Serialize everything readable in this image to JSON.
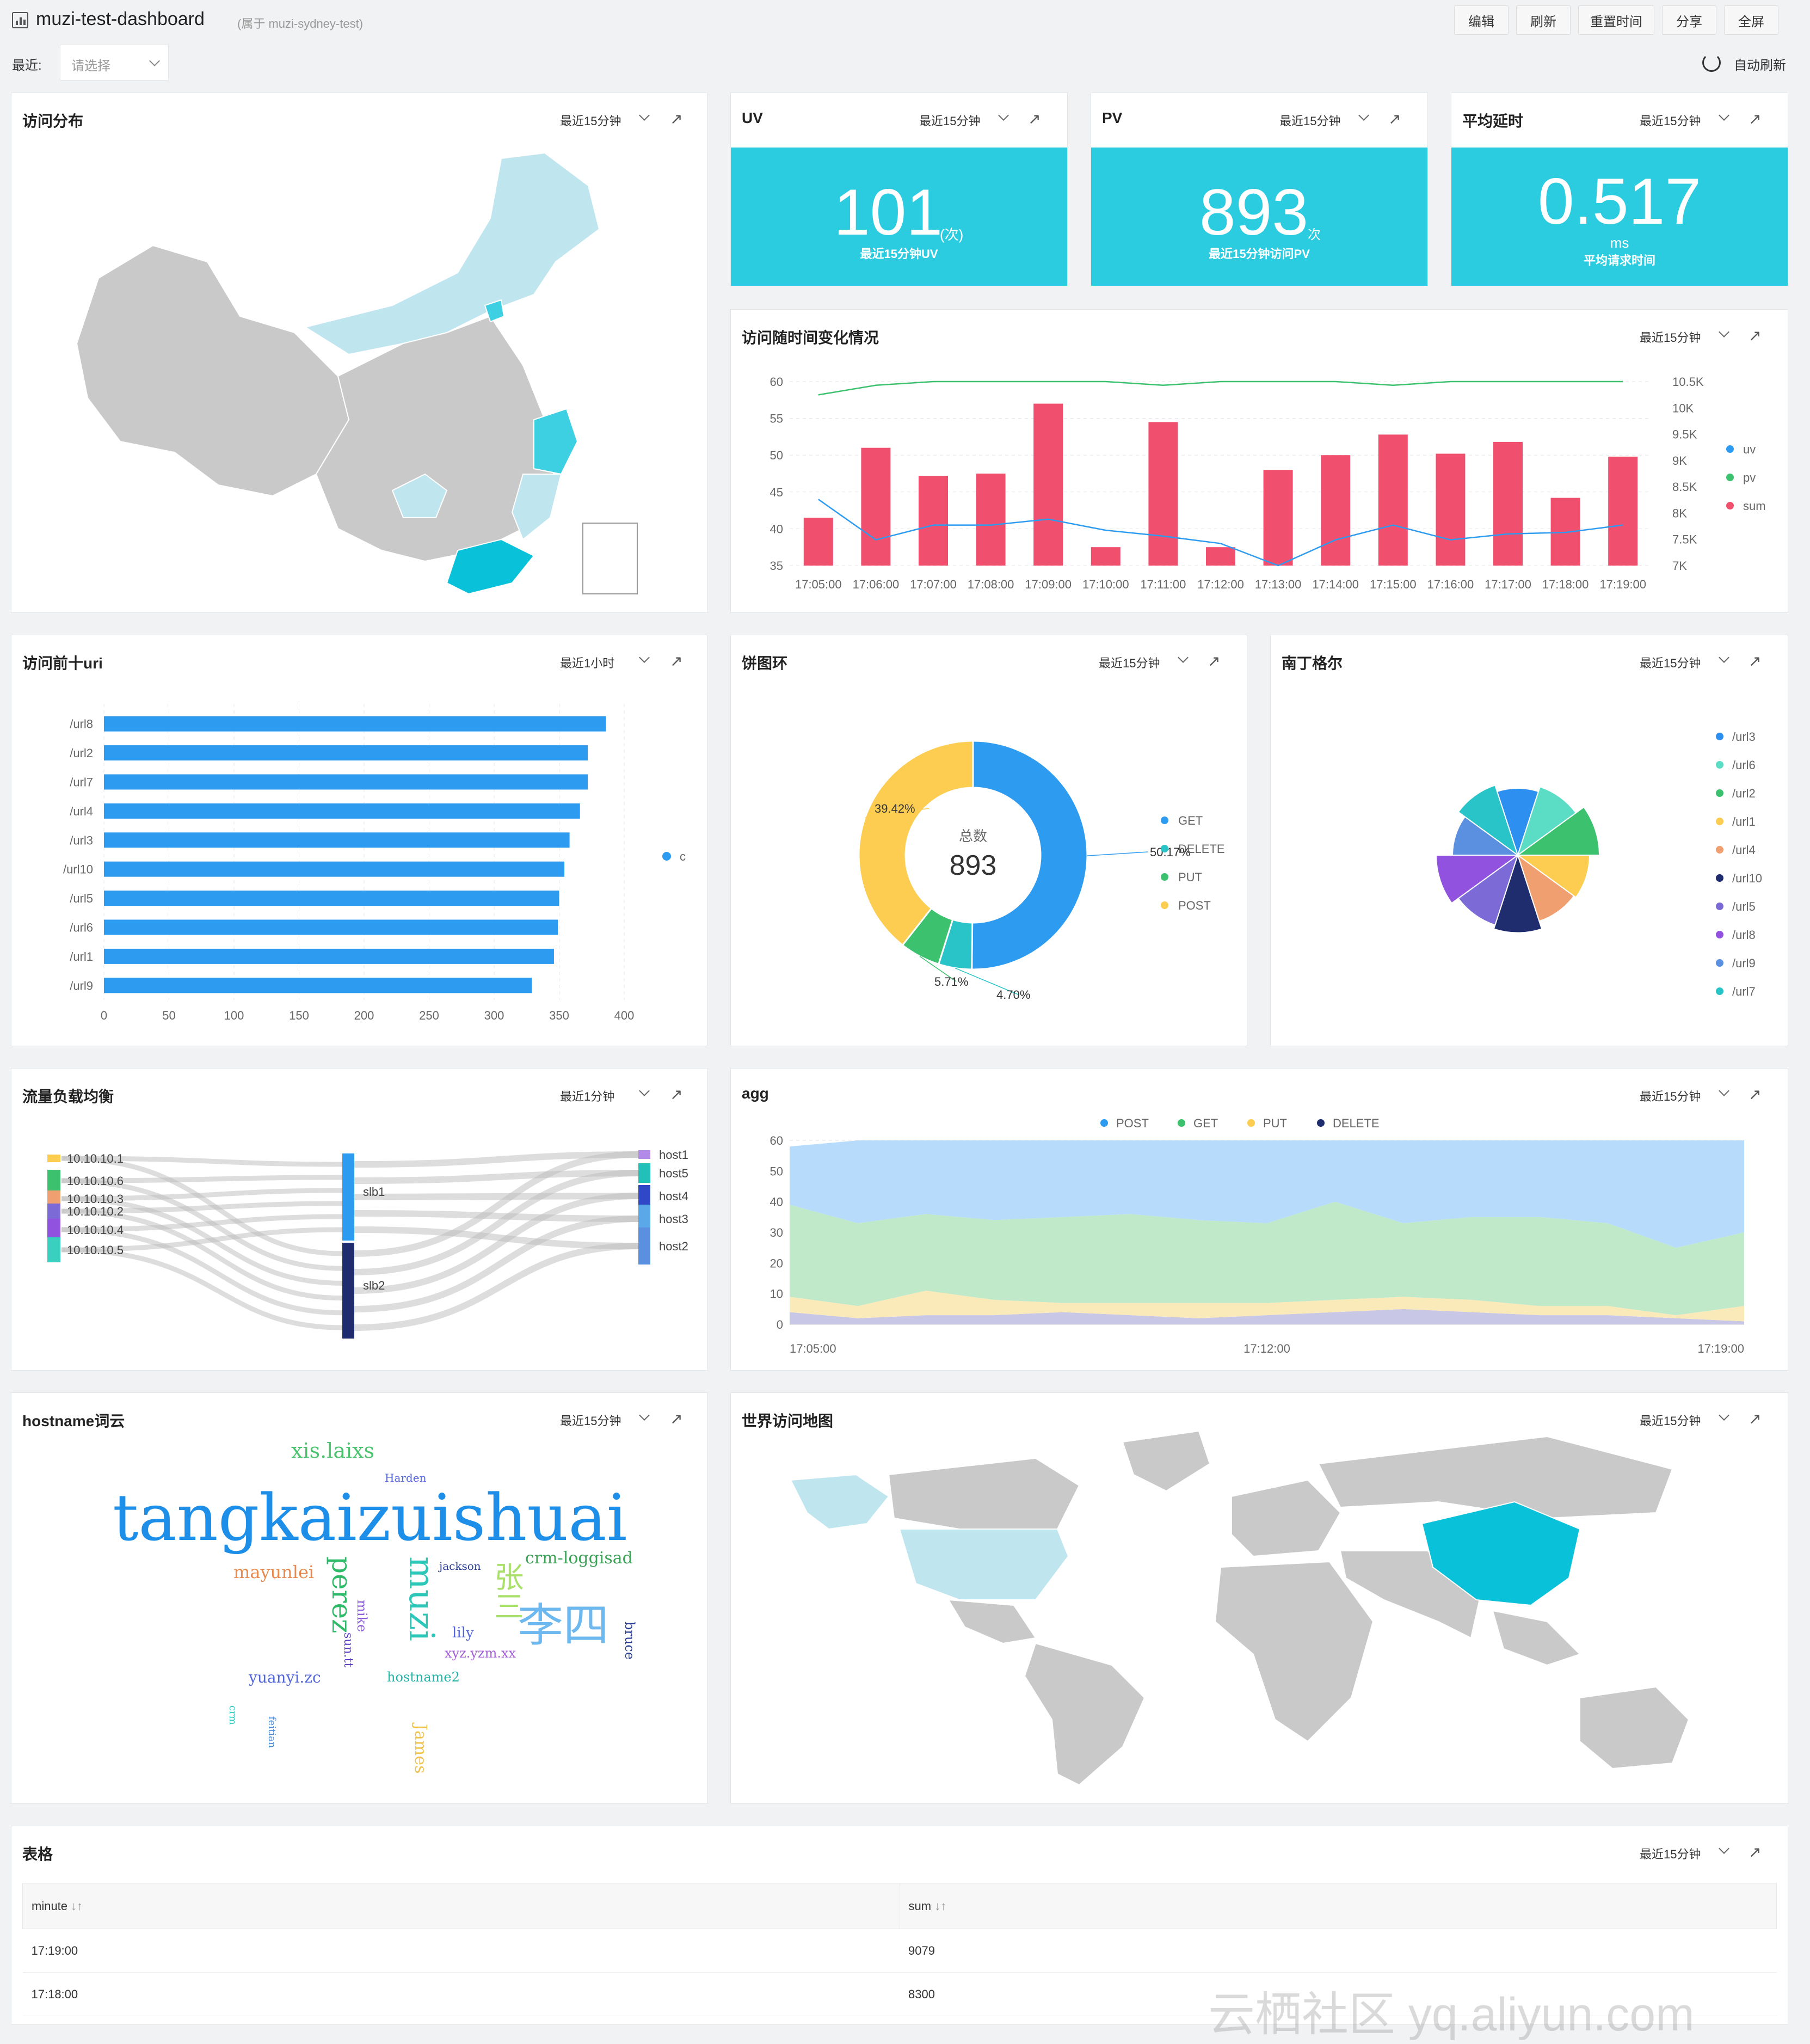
{
  "header": {
    "title": "muzi-test-dashboard",
    "belong": "(属于 muzi-sydney-test)",
    "buttons": [
      "编辑",
      "刷新",
      "重置时间",
      "分享",
      "全屏"
    ]
  },
  "filter": {
    "label": "最近:",
    "placeholder": "请选择",
    "auto_refresh": "自动刷新"
  },
  "panels": {
    "map": {
      "title": "访问分布",
      "range": "最近15分钟"
    },
    "uv": {
      "title": "UV",
      "range": "最近15分钟",
      "value": "101",
      "unit": "(次)",
      "desc": "最近15分钟UV"
    },
    "pv": {
      "title": "PV",
      "range": "最近15分钟",
      "value": "893",
      "unit": "次",
      "desc": "最近15分钟访问PV"
    },
    "latency": {
      "title": "平均延时",
      "range": "最近15分钟",
      "value": "0.517",
      "unit": "ms",
      "desc": "平均请求时间"
    },
    "timeline": {
      "title": "访问随时间变化情况",
      "range": "最近15分钟"
    },
    "topuri": {
      "title": "访问前十uri",
      "range": "最近1小时"
    },
    "pie": {
      "title": "饼图环",
      "range": "最近15分钟",
      "center_label": "总数",
      "center_value": "893"
    },
    "rose": {
      "title": "南丁格尔",
      "range": "最近15分钟"
    },
    "sankey": {
      "title": "流量负载均衡",
      "range": "最近1分钟"
    },
    "agg": {
      "title": "agg",
      "range": "最近15分钟"
    },
    "cloud": {
      "title": "hostname词云",
      "range": "最近15分钟"
    },
    "world": {
      "title": "世界访问地图",
      "range": "最近15分钟"
    },
    "table": {
      "title": "表格",
      "range": "最近15分钟"
    }
  },
  "colors": {
    "accent": "#2bcce0",
    "bar_red": "#f0506e",
    "blue": "#2d9bf0",
    "green": "#3cc26e",
    "yellow": "#fccd50",
    "navy": "#1f2d6e"
  },
  "chart_data": [
    {
      "type": "bar",
      "name": "timeline",
      "categories": [
        "17:05:00",
        "17:06:00",
        "17:07:00",
        "17:08:00",
        "17:09:00",
        "17:10:00",
        "17:11:00",
        "17:12:00",
        "17:13:00",
        "17:14:00",
        "17:15:00",
        "17:16:00",
        "17:17:00",
        "17:18:00",
        "17:19:00"
      ],
      "ylim": [
        35,
        60
      ],
      "yticks": [
        "60",
        "55",
        "50",
        "45",
        "40",
        "35"
      ],
      "y2lim": [
        7000,
        10500
      ],
      "y2ticks": [
        "10.5K",
        "10K",
        "9.5K",
        "9K",
        "8.5K",
        "8K",
        "7.5K",
        "7K"
      ],
      "series": [
        {
          "name": "sum",
          "type": "bar",
          "values": [
            41.5,
            51,
            47.2,
            47.5,
            57,
            37.5,
            54.5,
            37.5,
            48,
            50,
            52.8,
            50.2,
            51.8,
            44.2,
            49.8
          ]
        },
        {
          "name": "uv",
          "type": "line",
          "values": [
            44,
            38.5,
            40.5,
            40.5,
            41.3,
            39.8,
            39,
            38,
            35,
            38.5,
            40.5,
            38.5,
            39.3,
            39.5,
            40.5
          ]
        },
        {
          "name": "pv",
          "type": "line",
          "values": [
            58.2,
            59.5,
            60,
            60,
            60,
            60,
            59.5,
            60,
            60,
            60,
            59.5,
            60,
            60,
            60,
            60
          ]
        }
      ]
    },
    {
      "type": "bar",
      "name": "topuri",
      "orientation": "horizontal",
      "categories": [
        "/url8",
        "/url2",
        "/url7",
        "/url4",
        "/url3",
        "/url10",
        "/url5",
        "/url6",
        "/url1",
        "/url9"
      ],
      "values": [
        386,
        372,
        372,
        366,
        358,
        354,
        350,
        349,
        346,
        329
      ],
      "xlim": [
        0,
        400
      ],
      "xticks": [
        "0",
        "50",
        "100",
        "150",
        "200",
        "250",
        "300",
        "350",
        "400"
      ],
      "series_name": "c"
    },
    {
      "type": "pie",
      "name": "donut",
      "labels": [
        "GET",
        "DELETE",
        "PUT",
        "POST"
      ],
      "values": [
        50.17,
        4.7,
        5.71,
        39.42
      ],
      "value_labels": [
        "50.17%",
        "4.70%",
        "5.71%",
        "39.42%"
      ]
    },
    {
      "type": "pie",
      "name": "rose",
      "labels": [
        "/url3",
        "/url6",
        "/url2",
        "/url1",
        "/url4",
        "/url10",
        "/url5",
        "/url8",
        "/url9",
        "/url7"
      ],
      "values": [
        0.82,
        0.88,
        1.0,
        0.88,
        0.85,
        0.95,
        0.9,
        1.0,
        0.8,
        0.9
      ]
    },
    {
      "type": "area",
      "name": "agg",
      "series_names": [
        "POST",
        "GET",
        "PUT",
        "DELETE"
      ],
      "xlabels": [
        "17:05:00",
        "17:12:00",
        "17:19:00"
      ],
      "ylim": [
        0,
        60
      ],
      "yticks": [
        "60",
        "50",
        "40",
        "30",
        "20",
        "10",
        "0"
      ],
      "x": [
        0,
        1,
        2,
        3,
        4,
        5,
        6,
        7,
        8,
        9,
        10,
        11,
        12,
        13,
        14
      ],
      "series": [
        {
          "name": "DELETE",
          "values": [
            4,
            2,
            3,
            3,
            4,
            3,
            2,
            3,
            4,
            5,
            4,
            3,
            3,
            2,
            1
          ]
        },
        {
          "name": "PUT",
          "values": [
            5,
            4,
            8,
            5,
            3,
            4,
            5,
            4,
            4,
            4,
            4,
            3,
            3,
            1,
            5
          ]
        },
        {
          "name": "GET",
          "values": [
            30,
            27,
            25,
            26,
            28,
            29,
            27,
            26,
            32,
            24,
            27,
            29,
            27,
            22,
            24
          ]
        },
        {
          "name": "POST",
          "values": [
            19,
            27,
            24,
            26,
            25,
            24,
            26,
            27,
            20,
            27,
            25,
            25,
            27,
            35,
            30
          ]
        }
      ]
    },
    {
      "type": "sankey",
      "name": "sankey",
      "sources": [
        "10.10.10.1",
        "10.10.10.6",
        "10.10.10.3",
        "10.10.10.2",
        "10.10.10.4",
        "10.10.10.5"
      ],
      "middle": [
        "slb1",
        "slb2"
      ],
      "targets": [
        "host1",
        "host5",
        "host4",
        "host3",
        "host2"
      ]
    }
  ],
  "wordcloud": [
    "tangkaizuishuai",
    "xis.laixs",
    "Harden",
    "mayunlei",
    "perez",
    "muzi",
    "jackson",
    "crm-loggisad",
    "张三",
    "李四",
    "mike",
    "sun.tt",
    "lily",
    "xyz.yzm.xx",
    "bruce",
    "yuanyi.zc",
    "hostname2",
    "crm",
    "feitian",
    "James"
  ],
  "table": {
    "headers": [
      "minute",
      "sum"
    ],
    "rows": [
      [
        "17:19:00",
        "9079"
      ],
      [
        "17:18:00",
        "8300"
      ]
    ]
  },
  "watermark": "云栖社区 yq.aliyun.com"
}
